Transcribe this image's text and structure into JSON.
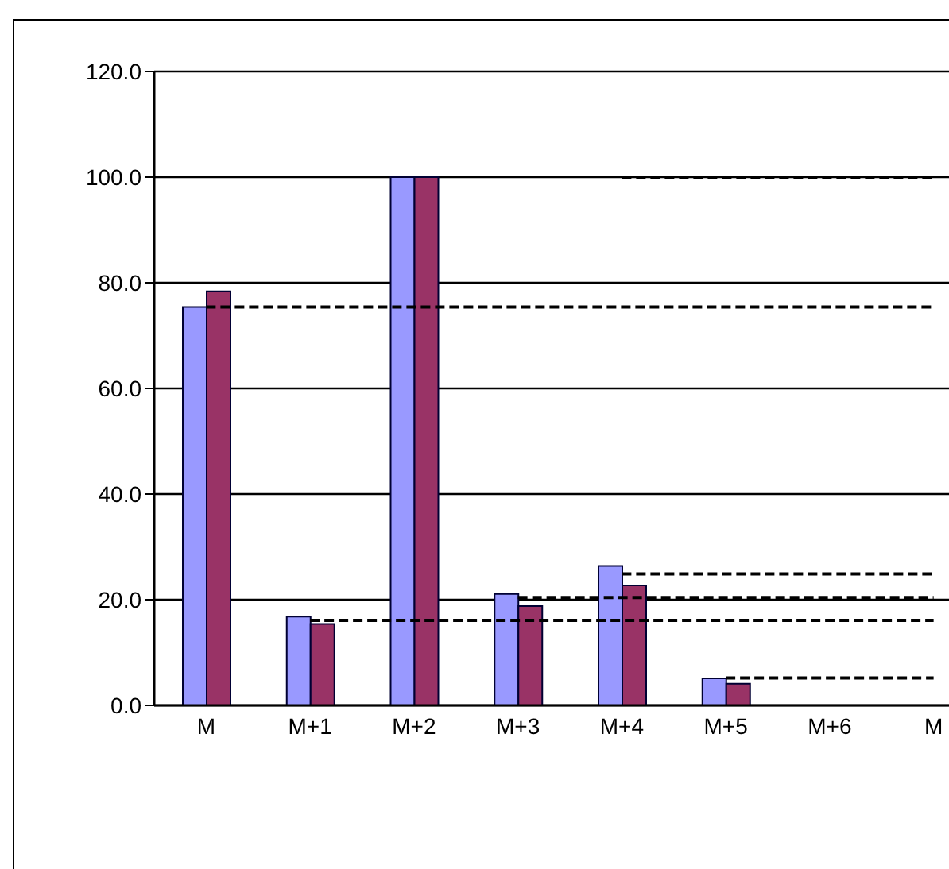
{
  "chart_data": {
    "type": "bar",
    "categories": [
      "M",
      "M+1",
      "M+2",
      "M+3",
      "M+4",
      "M+5",
      "M+6",
      "M"
    ],
    "series": [
      {
        "color": "#9999ff",
        "values": [
          75.4,
          16.8,
          100,
          21.1,
          26.4,
          5.1,
          null,
          null
        ]
      },
      {
        "color": "#993366",
        "values": [
          78.4,
          15.4,
          100,
          18.8,
          22.7,
          4.1,
          null,
          null
        ]
      },
      {
        "type": "line",
        "color": "#000000",
        "line_style": "dashed",
        "values": [
          75.4,
          75.4,
          75.4,
          75.4,
          75.4,
          75.4,
          75.4,
          75.4
        ]
      },
      {
        "type": "line",
        "color": "#000000",
        "line_style": "dashed",
        "values": [
          null,
          16.1,
          16.1,
          16.1,
          16.1,
          16.1,
          16.1,
          16.1
        ]
      },
      {
        "type": "line",
        "color": "#000000",
        "line_style": "dashed",
        "values": [
          null,
          null,
          null,
          20.4,
          20.4,
          20.4,
          20.4,
          20.4
        ]
      },
      {
        "type": "line",
        "color": "#000000",
        "line_style": "dashed",
        "values": [
          null,
          null,
          null,
          null,
          24.9,
          24.9,
          24.9,
          24.9
        ]
      },
      {
        "type": "line",
        "color": "#000000",
        "line_style": "dashed",
        "values": [
          null,
          null,
          null,
          null,
          100,
          100,
          100,
          100
        ]
      },
      {
        "type": "line",
        "color": "#000000",
        "line_style": "dashed",
        "values": [
          null,
          null,
          null,
          null,
          null,
          5.2,
          5.2,
          5.2
        ]
      }
    ],
    "ylim": [
      0,
      120
    ],
    "yticks": [
      {
        "value": 0,
        "label": "0.0"
      },
      {
        "value": 20,
        "label": "20.0"
      },
      {
        "value": 40,
        "label": "40.0"
      },
      {
        "value": 60,
        "label": "60.0"
      },
      {
        "value": 80,
        "label": "80.0"
      },
      {
        "value": 100,
        "label": "100.0"
      },
      {
        "value": 120,
        "label": "120.0"
      }
    ],
    "grid": "y"
  }
}
